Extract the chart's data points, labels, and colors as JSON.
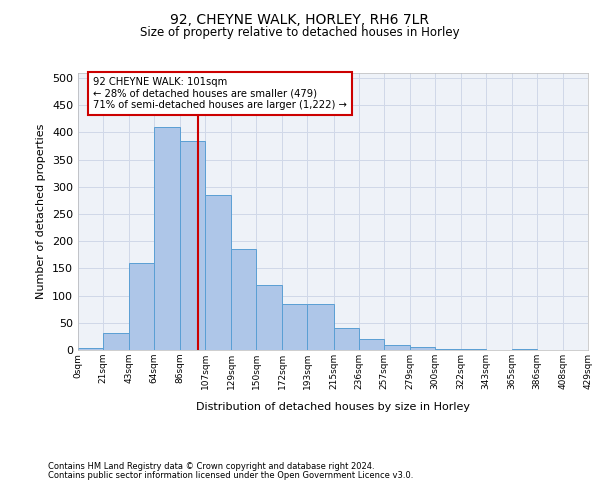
{
  "title1": "92, CHEYNE WALK, HORLEY, RH6 7LR",
  "title2": "Size of property relative to detached houses in Horley",
  "xlabel": "Distribution of detached houses by size in Horley",
  "ylabel": "Number of detached properties",
  "footnote1": "Contains HM Land Registry data © Crown copyright and database right 2024.",
  "footnote2": "Contains public sector information licensed under the Open Government Licence v3.0.",
  "bar_edges": [
    0,
    21,
    43,
    64,
    86,
    107,
    129,
    150,
    172,
    193,
    215,
    236,
    257,
    279,
    300,
    322,
    343,
    365,
    386,
    408,
    429
  ],
  "bar_heights": [
    3,
    32,
    160,
    410,
    385,
    285,
    185,
    120,
    85,
    85,
    40,
    20,
    10,
    5,
    2,
    1,
    0,
    1,
    0,
    0
  ],
  "bar_color": "#aec6e8",
  "bar_edge_color": "#5a9fd4",
  "grid_color": "#d0d8e8",
  "bg_color": "#eef2f8",
  "vline_x": 101,
  "vline_color": "#cc0000",
  "annotation_text": "92 CHEYNE WALK: 101sqm\n← 28% of detached houses are smaller (479)\n71% of semi-detached houses are larger (1,222) →",
  "annotation_box_color": "#ffffff",
  "annotation_box_edge_color": "#cc0000",
  "ylim": [
    0,
    510
  ],
  "yticks": [
    0,
    50,
    100,
    150,
    200,
    250,
    300,
    350,
    400,
    450,
    500
  ],
  "tick_labels": [
    "0sqm",
    "21sqm",
    "43sqm",
    "64sqm",
    "86sqm",
    "107sqm",
    "129sqm",
    "150sqm",
    "172sqm",
    "193sqm",
    "215sqm",
    "236sqm",
    "257sqm",
    "279sqm",
    "300sqm",
    "322sqm",
    "343sqm",
    "365sqm",
    "386sqm",
    "408sqm",
    "429sqm"
  ]
}
